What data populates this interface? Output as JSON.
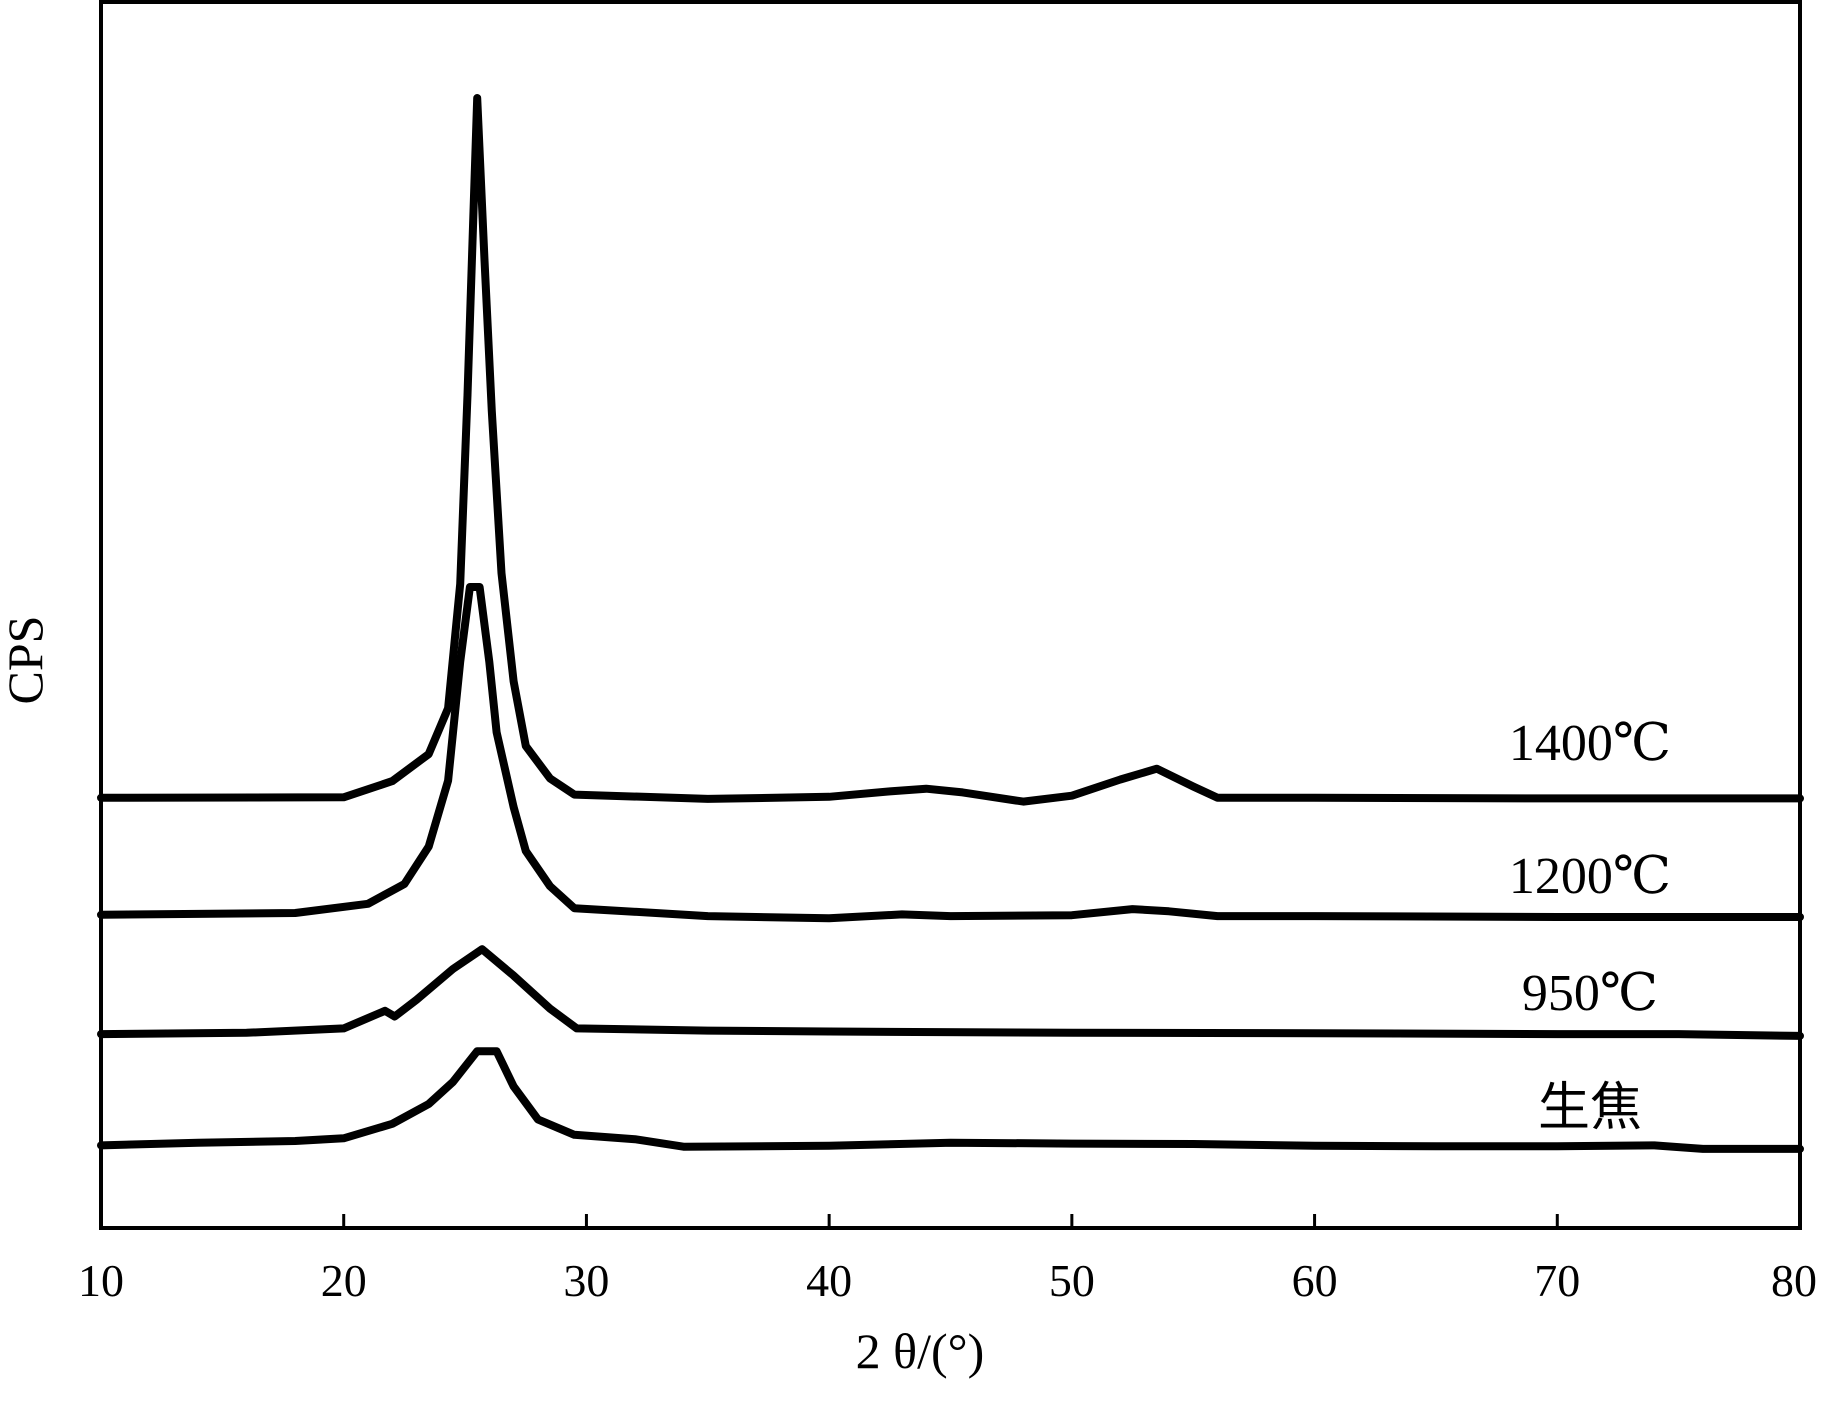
{
  "chart_data": {
    "type": "line",
    "title": "",
    "xlabel": "2 θ/(°)",
    "ylabel": "CPS",
    "xlim": [
      10,
      80
    ],
    "x_ticks": [
      10,
      20,
      30,
      40,
      50,
      60,
      70,
      80
    ],
    "y_ticks_shown": false,
    "grid": false,
    "legend": "inline labels at right",
    "y_units": "arbitrary (stacked, no scale)",
    "series": [
      {
        "name": "生焦",
        "points": [
          [
            10,
            0.6
          ],
          [
            14,
            1.2
          ],
          [
            18,
            1.6
          ],
          [
            20,
            2.2
          ],
          [
            22,
            5.5
          ],
          [
            23.5,
            10
          ],
          [
            24.5,
            15
          ],
          [
            25.5,
            22
          ],
          [
            26.3,
            22
          ],
          [
            27,
            14
          ],
          [
            28,
            6.5
          ],
          [
            29.5,
            3
          ],
          [
            32,
            2.0
          ],
          [
            34,
            0.3
          ],
          [
            40,
            0.5
          ],
          [
            45,
            1.2
          ],
          [
            50,
            1.0
          ],
          [
            55,
            0.9
          ],
          [
            60,
            0.5
          ],
          [
            65,
            0.4
          ],
          [
            70,
            0.4
          ],
          [
            74,
            0.6
          ],
          [
            76,
            -0.2
          ],
          [
            80,
            -0.2
          ]
        ]
      },
      {
        "name": "950℃",
        "points": [
          [
            10,
            0.2
          ],
          [
            16,
            0.5
          ],
          [
            20,
            1.5
          ],
          [
            21.7,
            5.5
          ],
          [
            22.1,
            4.2
          ],
          [
            23,
            8
          ],
          [
            24.5,
            15
          ],
          [
            25.7,
            19.5
          ],
          [
            27,
            13.5
          ],
          [
            28.5,
            6
          ],
          [
            29.6,
            1.5
          ],
          [
            35,
            1.0
          ],
          [
            40,
            0.8
          ],
          [
            50,
            0.5
          ],
          [
            60,
            0.4
          ],
          [
            70,
            0.2
          ],
          [
            75,
            0.2
          ],
          [
            80,
            -0.2
          ]
        ]
      },
      {
        "name": "1200℃",
        "points": [
          [
            10,
            0.5
          ],
          [
            18,
            0.9
          ],
          [
            21,
            3
          ],
          [
            22.5,
            7.5
          ],
          [
            23.5,
            16
          ],
          [
            24.3,
            31
          ],
          [
            24.8,
            58
          ],
          [
            25.2,
            75
          ],
          [
            25.6,
            75
          ],
          [
            26,
            58
          ],
          [
            26.3,
            42
          ],
          [
            27,
            25
          ],
          [
            27.5,
            15
          ],
          [
            28.5,
            7
          ],
          [
            29.5,
            2
          ],
          [
            35,
            0.2
          ],
          [
            40,
            -0.3
          ],
          [
            43,
            0.6
          ],
          [
            45,
            0.2
          ],
          [
            50,
            0.4
          ],
          [
            52.5,
            1.8
          ],
          [
            54,
            1.3
          ],
          [
            56,
            0.2
          ],
          [
            60,
            0.2
          ],
          [
            70,
            0.0
          ],
          [
            80,
            0.0
          ]
        ]
      },
      {
        "name": "1400℃",
        "points": [
          [
            10,
            0.4
          ],
          [
            20,
            0.5
          ],
          [
            22,
            3.5
          ],
          [
            23.5,
            8.5
          ],
          [
            24.3,
            17
          ],
          [
            24.8,
            40
          ],
          [
            25.1,
            75
          ],
          [
            25.5,
            130
          ],
          [
            25.8,
            100
          ],
          [
            26.1,
            72
          ],
          [
            26.5,
            42
          ],
          [
            27,
            22
          ],
          [
            27.5,
            10
          ],
          [
            28.5,
            4
          ],
          [
            29.5,
            1
          ],
          [
            35,
            0.2
          ],
          [
            40,
            0.6
          ],
          [
            42.5,
            1.6
          ],
          [
            44,
            2.1
          ],
          [
            45.5,
            1.4
          ],
          [
            48,
            -0.3
          ],
          [
            50,
            0.8
          ],
          [
            52,
            3.8
          ],
          [
            53.5,
            5.8
          ],
          [
            55,
            2.5
          ],
          [
            56,
            0.4
          ],
          [
            60,
            0.4
          ],
          [
            70,
            0.3
          ],
          [
            80,
            0.3
          ]
        ]
      }
    ]
  }
}
